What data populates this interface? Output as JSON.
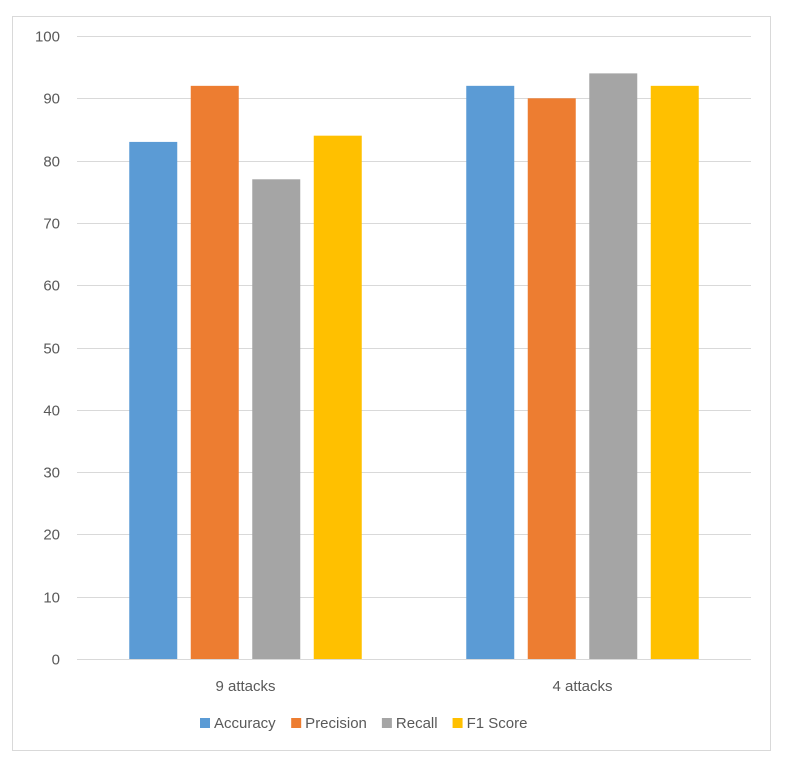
{
  "chart_data": {
    "type": "bar",
    "title": "",
    "xlabel": "",
    "ylabel": "",
    "categories": [
      "9 attacks",
      "4 attacks"
    ],
    "series": [
      {
        "name": "Accuracy",
        "values": [
          83,
          92
        ],
        "color": "#5B9BD5"
      },
      {
        "name": "Precision",
        "values": [
          92,
          90
        ],
        "color": "#ED7D31"
      },
      {
        "name": "Recall",
        "values": [
          77,
          94
        ],
        "color": "#A5A5A5"
      },
      {
        "name": "F1 Score",
        "values": [
          84,
          92
        ],
        "color": "#FFC000"
      }
    ],
    "ylim": [
      0,
      100
    ],
    "yticks": [
      0,
      10,
      20,
      30,
      40,
      50,
      60,
      70,
      80,
      90,
      100
    ],
    "grid": true,
    "legend": "bottom-center"
  }
}
